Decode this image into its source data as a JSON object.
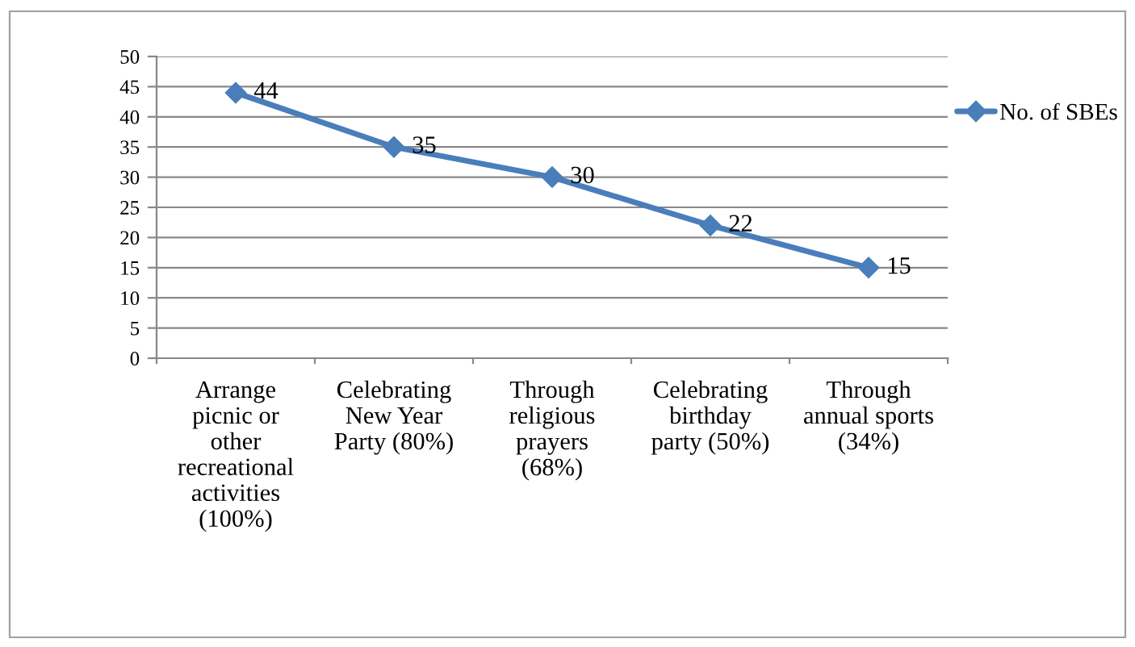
{
  "chart_data": {
    "type": "line",
    "categories": [
      "Arrange\npicnic or\nother\nrecreational\nactivities\n(100%)",
      "Celebrating\nNew Year\nParty (80%)",
      "Through\nreligious\nprayers\n(68%)",
      "Celebrating\nbirthday\nparty (50%)",
      "Through\nannual sports\n(34%)"
    ],
    "series": [
      {
        "name": "No. of SBEs",
        "color": "#4a7ebb",
        "values": [
          44,
          35,
          30,
          22,
          15
        ]
      }
    ],
    "ylim": [
      0,
      50
    ],
    "yticks": [
      0,
      5,
      10,
      15,
      20,
      25,
      30,
      35,
      40,
      45,
      50
    ],
    "grid": "y",
    "legend": "right",
    "marker": "diamond",
    "line_style": "solid",
    "data_labels": true
  }
}
